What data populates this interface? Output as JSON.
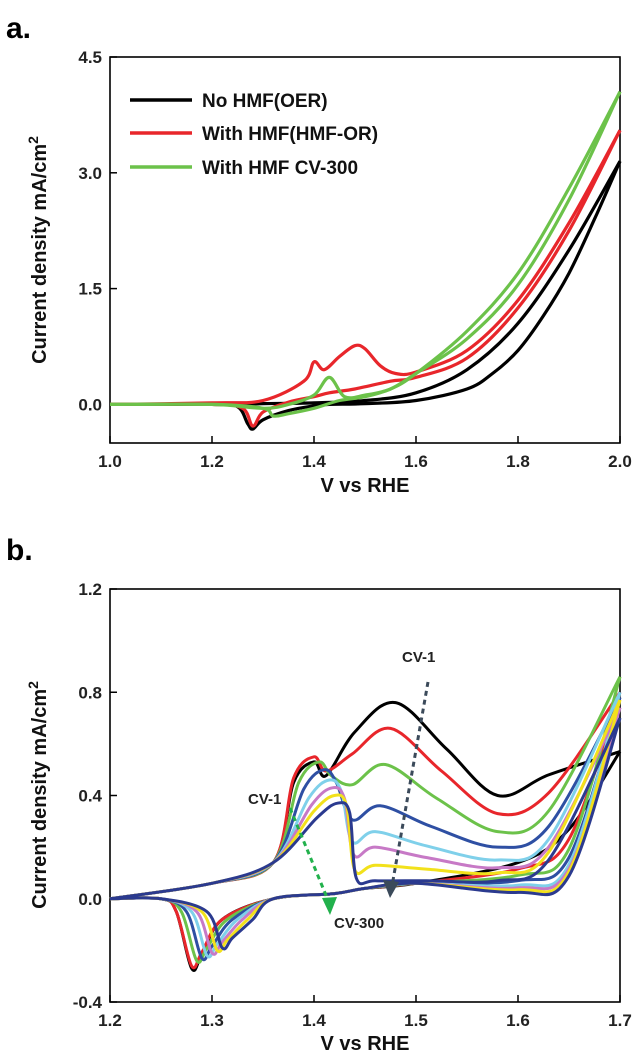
{
  "chart_data": [
    {
      "panel_label": "a.",
      "type": "line",
      "xlabel": "V vs RHE",
      "ylabel": "Current density mA/cm",
      "ylabel_sup": "2",
      "xlim": [
        1.0,
        2.0
      ],
      "ylim": [
        -0.5,
        4.5
      ],
      "xticks": [
        "1.0",
        "1.2",
        "1.4",
        "1.6",
        "1.8",
        "2.0"
      ],
      "yticks": [
        "0.0",
        "1.5",
        "3.0",
        "4.5"
      ],
      "legend_position": "top-left",
      "series": [
        {
          "name": "No HMF(OER)",
          "color": "#000000",
          "forward": [
            [
              1.0,
              0
            ],
            [
              1.2,
              0.0
            ],
            [
              1.3,
              0.01
            ],
            [
              1.4,
              0.02
            ],
            [
              1.5,
              0.05
            ],
            [
              1.6,
              0.15
            ],
            [
              1.7,
              0.45
            ],
            [
              1.8,
              1.05
            ],
            [
              1.9,
              2.0
            ],
            [
              2.0,
              3.15
            ]
          ],
          "reverse": [
            [
              2.0,
              3.15
            ],
            [
              1.95,
              2.4
            ],
            [
              1.9,
              1.7
            ],
            [
              1.85,
              1.15
            ],
            [
              1.8,
              0.7
            ],
            [
              1.75,
              0.4
            ],
            [
              1.7,
              0.2
            ],
            [
              1.6,
              0.05
            ],
            [
              1.5,
              0.01
            ],
            [
              1.43,
              0.0
            ],
            [
              1.4,
              -0.02
            ],
            [
              1.35,
              -0.08
            ],
            [
              1.3,
              -0.2
            ],
            [
              1.28,
              -0.32
            ],
            [
              1.27,
              -0.25
            ],
            [
              1.25,
              -0.03
            ],
            [
              1.2,
              0.0
            ],
            [
              1.0,
              0.0
            ]
          ]
        },
        {
          "name": "With HMF(HMF-OR)",
          "color": "#e8262b",
          "forward": [
            [
              1.0,
              0
            ],
            [
              1.2,
              0.02
            ],
            [
              1.3,
              0.05
            ],
            [
              1.38,
              0.3
            ],
            [
              1.4,
              0.55
            ],
            [
              1.42,
              0.45
            ],
            [
              1.45,
              0.62
            ],
            [
              1.48,
              0.76
            ],
            [
              1.5,
              0.72
            ],
            [
              1.53,
              0.5
            ],
            [
              1.56,
              0.4
            ],
            [
              1.6,
              0.42
            ],
            [
              1.7,
              0.7
            ],
            [
              1.8,
              1.35
            ],
            [
              1.9,
              2.35
            ],
            [
              2.0,
              3.55
            ]
          ],
          "reverse": [
            [
              2.0,
              3.55
            ],
            [
              1.9,
              2.25
            ],
            [
              1.8,
              1.25
            ],
            [
              1.7,
              0.6
            ],
            [
              1.6,
              0.35
            ],
            [
              1.55,
              0.3
            ],
            [
              1.48,
              0.2
            ],
            [
              1.43,
              0.15
            ],
            [
              1.4,
              0.1
            ],
            [
              1.35,
              0.03
            ],
            [
              1.3,
              -0.1
            ],
            [
              1.28,
              -0.28
            ],
            [
              1.26,
              -0.05
            ],
            [
              1.2,
              0.0
            ],
            [
              1.0,
              0.0
            ]
          ]
        },
        {
          "name": "With HMF CV-300",
          "color": "#6cc24a",
          "forward": [
            [
              1.0,
              0
            ],
            [
              1.2,
              0.0
            ],
            [
              1.3,
              -0.05
            ],
            [
              1.35,
              0.0
            ],
            [
              1.4,
              0.12
            ],
            [
              1.43,
              0.35
            ],
            [
              1.46,
              0.1
            ],
            [
              1.5,
              0.12
            ],
            [
              1.55,
              0.2
            ],
            [
              1.6,
              0.4
            ],
            [
              1.7,
              0.95
            ],
            [
              1.8,
              1.7
            ],
            [
              1.9,
              2.8
            ],
            [
              2.0,
              4.05
            ]
          ],
          "reverse": [
            [
              2.0,
              4.05
            ],
            [
              1.9,
              2.65
            ],
            [
              1.8,
              1.55
            ],
            [
              1.7,
              0.85
            ],
            [
              1.6,
              0.4
            ],
            [
              1.55,
              0.2
            ],
            [
              1.5,
              0.1
            ],
            [
              1.45,
              0.05
            ],
            [
              1.4,
              -0.05
            ],
            [
              1.35,
              -0.12
            ],
            [
              1.32,
              -0.15
            ],
            [
              1.3,
              -0.05
            ],
            [
              1.2,
              0.0
            ],
            [
              1.0,
              0.0
            ]
          ]
        }
      ]
    },
    {
      "panel_label": "b.",
      "type": "line",
      "xlabel": "V vs RHE",
      "ylabel": "Current density mA/cm",
      "ylabel_sup": "2",
      "xlim": [
        1.2,
        1.7
      ],
      "ylim": [
        -0.4,
        1.2
      ],
      "xticks": [
        "1.2",
        "1.3",
        "1.4",
        "1.5",
        "1.6",
        "1.7"
      ],
      "yticks": [
        "-0.4",
        "0.0",
        "0.4",
        "0.8",
        "1.2"
      ],
      "annotations": [
        "CV-1",
        "CV-1",
        "CV-300"
      ],
      "series": [
        {
          "color": "#000000",
          "p1": 0.53,
          "e1": 1.4,
          "p2": 0.76,
          "e2": 1.48,
          "valley": 0.4,
          "end": 0.57,
          "pc": -0.27,
          "ec": 1.28
        },
        {
          "color": "#e8262b",
          "p1": 0.55,
          "e1": 1.4,
          "p2": 0.66,
          "e2": 1.475,
          "valley": 0.33,
          "end": 0.8,
          "pc": -0.26,
          "ec": 1.28
        },
        {
          "color": "#6cc24a",
          "p1": 0.53,
          "e1": 1.405,
          "p2": 0.52,
          "e2": 1.47,
          "valley": 0.26,
          "end": 0.86,
          "pc": -0.24,
          "ec": 1.285
        },
        {
          "color": "#2e4fa3",
          "p1": 0.5,
          "e1": 1.41,
          "p2": 0.36,
          "e2": 1.465,
          "valley": 0.2,
          "end": 0.78,
          "pc": -0.23,
          "ec": 1.29
        },
        {
          "color": "#7fd0ea",
          "p1": 0.46,
          "e1": 1.415,
          "p2": 0.26,
          "e2": 1.46,
          "valley": 0.15,
          "end": 0.8,
          "pc": -0.22,
          "ec": 1.295
        },
        {
          "color": "#c779c6",
          "p1": 0.43,
          "e1": 1.418,
          "p2": 0.2,
          "e2": 1.46,
          "valley": 0.12,
          "end": 0.74,
          "pc": -0.21,
          "ec": 1.3
        },
        {
          "color": "#f2e11b",
          "p1": 0.4,
          "e1": 1.42,
          "p2": 0.13,
          "e2": 1.46,
          "valley": 0.1,
          "end": 0.77,
          "pc": -0.2,
          "ec": 1.305
        },
        {
          "color": "#2b3a8f",
          "p1": 0.37,
          "e1": 1.423,
          "p2": 0.07,
          "e2": 1.46,
          "valley": 0.07,
          "end": 0.7,
          "pc": -0.19,
          "ec": 1.31
        }
      ]
    }
  ]
}
